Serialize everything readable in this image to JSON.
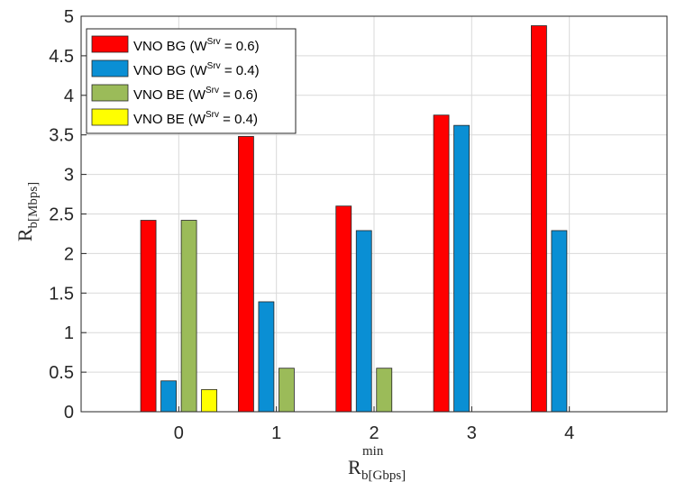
{
  "chart_data": {
    "type": "bar",
    "categories": [
      "0",
      "1",
      "2",
      "3",
      "4"
    ],
    "series": [
      {
        "name_prefix": "VNO BG (W",
        "name_sup": "Srv",
        "name_suffix": " = 0.6)",
        "color": "#ff0000",
        "values": [
          2.42,
          3.48,
          2.6,
          3.75,
          4.88
        ]
      },
      {
        "name_prefix": "VNO BG (W",
        "name_sup": "Srv",
        "name_suffix": " = 0.4)",
        "color": "#0a8fd4",
        "values": [
          0.39,
          1.39,
          2.29,
          3.62,
          2.29
        ]
      },
      {
        "name_prefix": "VNO BE (W",
        "name_sup": "Srv",
        "name_suffix": " = 0.6)",
        "color": "#9bbb59",
        "values": [
          2.42,
          0.55,
          0.55,
          0,
          0
        ]
      },
      {
        "name_prefix": "VNO BE (W",
        "name_sup": "Srv",
        "name_suffix": " = 0.4)",
        "color": "#ffff00",
        "values": [
          0.28,
          0,
          0,
          0,
          0
        ]
      }
    ],
    "yticks": [
      "0",
      "0.5",
      "1",
      "1.5",
      "2",
      "2.5",
      "3",
      "3.5",
      "4",
      "4.5",
      "5"
    ],
    "ylim": [
      0,
      5
    ],
    "xlim": [
      -1,
      5
    ],
    "ylabel": {
      "main": "R",
      "sub": "b[Mbps]"
    },
    "xlabel": {
      "main": "R",
      "sub": "b[Gbps]",
      "sup": "min"
    },
    "grid": true,
    "legend_position": "top-left"
  }
}
